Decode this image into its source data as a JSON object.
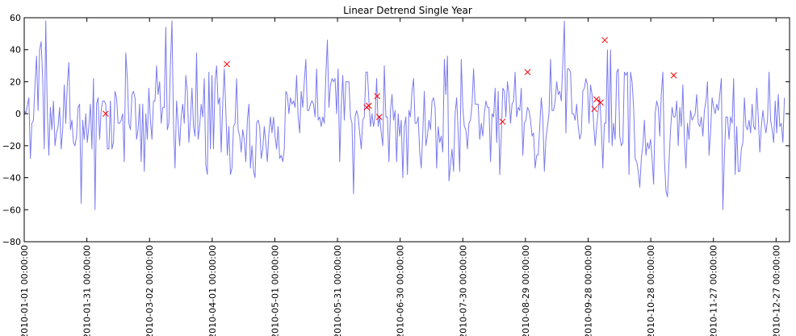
{
  "chart_data": {
    "type": "line",
    "title": "Linear Detrend Single Year",
    "xlabel": "",
    "ylabel": "",
    "ylim": [
      -80,
      60
    ],
    "xlim": [
      "2010-01-01",
      "2010-12-31"
    ],
    "grid": false,
    "x_axis_type": "date",
    "y_ticks": [
      -80,
      -60,
      -40,
      -20,
      0,
      20,
      40,
      60
    ],
    "x_ticks": [
      "2010-01-01 00:00:00",
      "2010-01-31 00:00:00",
      "2010-03-02 00:00:00",
      "2010-04-01 00:00:00",
      "2010-05-01 00:00:00",
      "2010-05-31 00:00:00",
      "2010-06-30 00:00:00",
      "2010-07-30 00:00:00",
      "2010-08-29 00:00:00",
      "2010-09-28 00:00:00",
      "2010-10-28 00:00:00",
      "2010-11-27 00:00:00",
      "2010-12-27 00:00:00"
    ],
    "colors": {
      "line": "#7b7bf0",
      "markers": "#ff0000",
      "axes": "#000000"
    },
    "series": [
      {
        "style": "line",
        "start_date": "2010-01-01",
        "values": [
          2,
          0,
          5,
          10,
          -28,
          -6,
          -4,
          18,
          36,
          2,
          40,
          45,
          22,
          -22,
          58,
          2,
          -26,
          4,
          -10,
          8,
          -20,
          -12,
          -8,
          4,
          -22,
          -10,
          18,
          -6,
          18,
          32,
          -10,
          -4,
          -18,
          -20,
          -14,
          4,
          6,
          -56,
          -4,
          -16,
          0,
          -18,
          -8,
          6,
          -22,
          22,
          -60,
          6,
          10,
          -16,
          2,
          8,
          8,
          6,
          -22,
          -22,
          8,
          -22,
          -18,
          14,
          10,
          -6,
          -6,
          -4,
          0,
          -30,
          38,
          22,
          -6,
          -10,
          12,
          14,
          10,
          -16,
          -10,
          6,
          -30,
          6,
          -36,
          0,
          -16,
          16,
          -4,
          -16,
          8,
          8,
          30,
          12,
          20,
          -6,
          4,
          4,
          54,
          -10,
          -6,
          30,
          58,
          -6,
          -34,
          8,
          -6,
          -20,
          -2,
          6,
          -6,
          24,
          14,
          -18,
          -4,
          16,
          -8,
          -14,
          38,
          -16,
          -8,
          6,
          -2,
          22,
          -32,
          -38,
          26,
          -22,
          24,
          -22,
          20,
          30,
          6,
          10,
          -24,
          6,
          28,
          2,
          -26,
          -8,
          -38,
          -34,
          -8,
          -6,
          22,
          -10,
          -14,
          -24,
          -10,
          -16,
          -30,
          -4,
          6,
          -34,
          -20,
          -36,
          -40,
          -6,
          -4,
          -8,
          -28,
          -22,
          -8,
          -18,
          -30,
          -12,
          -2,
          -12,
          -2,
          -14,
          -22,
          -8,
          -28,
          -26,
          -30,
          -22,
          14,
          12,
          0,
          10,
          6,
          8,
          4,
          24,
          -2,
          -12,
          14,
          4,
          20,
          34,
          2,
          2,
          6,
          8,
          6,
          -2,
          28,
          -4,
          -2,
          -8,
          -2,
          -6,
          24,
          46,
          4,
          18,
          22,
          20,
          22,
          0,
          28,
          -30,
          4,
          24,
          -4,
          20,
          20,
          20,
          -2,
          -6,
          -50,
          -2,
          2,
          -2,
          -12,
          -22,
          -4,
          -2,
          26,
          26,
          8,
          -8,
          0,
          -8,
          -2,
          22,
          -8,
          -2,
          -12,
          -20,
          30,
          -2,
          -2,
          -30,
          2,
          12,
          -4,
          2,
          -30,
          0,
          -14,
          -4,
          -40,
          -8,
          -2,
          -38,
          2,
          -2,
          14,
          22,
          -6,
          -6,
          -2,
          -24,
          -34,
          -12,
          14,
          -20,
          -14,
          -4,
          -10,
          8,
          10,
          4,
          -34,
          -8,
          -18,
          -14,
          -24,
          34,
          12,
          36,
          -42,
          -32,
          -22,
          -36,
          0,
          10,
          -12,
          -36,
          34,
          4,
          -8,
          -10,
          -22,
          -6,
          -4,
          6,
          28,
          6,
          6,
          6,
          -16,
          -6,
          -14,
          0,
          8,
          4,
          4,
          -30,
          0,
          -2,
          16,
          -18,
          14,
          -38,
          -14,
          16,
          14,
          -2,
          20,
          12,
          -6,
          6,
          8,
          26,
          -2,
          4,
          2,
          16,
          -26,
          -6,
          -4,
          4,
          2,
          -4,
          -14,
          -12,
          -34,
          -26,
          -26,
          -8,
          10,
          -2,
          -36,
          -16,
          -8,
          0,
          34,
          2,
          2,
          8,
          20,
          12,
          14,
          8,
          32,
          58,
          -12,
          28,
          28,
          26,
          0,
          0,
          -4,
          6,
          -8,
          -16,
          -12,
          14,
          16,
          22,
          18,
          -6,
          18,
          12,
          -6,
          -20,
          -8,
          2,
          10,
          -8,
          -34,
          -6,
          -6,
          40,
          -18,
          40,
          -20,
          -6,
          -16,
          26,
          28,
          -14,
          -20,
          -18,
          26,
          24,
          26,
          -38,
          26,
          20,
          4,
          -28,
          -30,
          -36,
          -46,
          -28,
          -20,
          -4,
          -26,
          -18,
          -22,
          -16,
          -28,
          -44,
          0,
          8,
          4,
          -14,
          12,
          26,
          -28,
          -48,
          -52,
          -30,
          -10,
          4,
          -2,
          -2,
          8,
          -20,
          4,
          -8,
          18,
          -16,
          -34,
          -6,
          -16,
          2,
          -4,
          -2,
          0,
          12,
          -6,
          -8,
          -2,
          -14,
          2,
          8,
          20,
          -26,
          -12,
          10,
          4,
          0,
          6,
          2,
          12,
          22,
          -60,
          -26,
          -2,
          -2,
          -16,
          -2,
          -6,
          22,
          -38,
          -8,
          -36,
          -36,
          -22,
          -18,
          10,
          -8,
          -10,
          -4,
          -12,
          6,
          -8,
          -10,
          16,
          -2,
          -24,
          -8,
          2,
          -6,
          -12,
          -4,
          26,
          -4,
          -10,
          -18,
          8,
          -12,
          12,
          -8,
          -6,
          -18,
          10
        ],
        "sampling": "daily"
      },
      {
        "style": "markers",
        "marker": "x",
        "points": [
          {
            "x": "2010-02-09",
            "y": 0
          },
          {
            "x": "2010-04-08",
            "y": 31
          },
          {
            "x": "2010-06-14",
            "y": 4
          },
          {
            "x": "2010-06-15",
            "y": 5
          },
          {
            "x": "2010-06-19",
            "y": 11
          },
          {
            "x": "2010-06-20",
            "y": -2
          },
          {
            "x": "2010-08-18",
            "y": -5
          },
          {
            "x": "2010-08-30",
            "y": 26
          },
          {
            "x": "2010-10-01",
            "y": 3
          },
          {
            "x": "2010-10-02",
            "y": 9
          },
          {
            "x": "2010-10-04",
            "y": 7
          },
          {
            "x": "2010-10-06",
            "y": 46
          },
          {
            "x": "2010-11-08",
            "y": 24
          }
        ]
      }
    ]
  }
}
